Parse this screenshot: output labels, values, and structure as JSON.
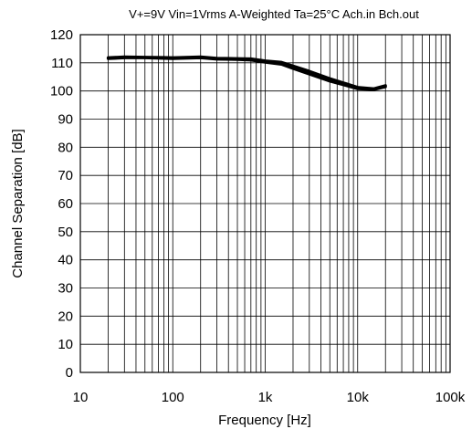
{
  "chart_data": {
    "type": "line",
    "title": "V+=9V Vin=1Vrms A-Weighted Ta=25°C Ach.in Bch.out",
    "xlabel": "Frequency [Hz]",
    "ylabel": "Channel Separation [dB]",
    "xscale": "log",
    "xlim": [
      10,
      100000
    ],
    "ylim": [
      0,
      120
    ],
    "x_ticks": [
      10,
      100,
      1000,
      10000,
      100000
    ],
    "x_tick_labels": [
      "10",
      "100",
      "1k",
      "10k",
      "100k"
    ],
    "y_ticks": [
      0,
      10,
      20,
      30,
      40,
      50,
      60,
      70,
      80,
      90,
      100,
      110,
      120
    ],
    "y_tick_labels": [
      "0",
      "10",
      "20",
      "30",
      "40",
      "50",
      "60",
      "70",
      "80",
      "90",
      "100",
      "110",
      "120"
    ],
    "grid": true,
    "legend": false,
    "series": [
      {
        "x": [
          20,
          30,
          50,
          80,
          100,
          150,
          200,
          300,
          500,
          700,
          1000,
          1500,
          2000,
          3000,
          5000,
          7000,
          10000,
          15000,
          20000
        ],
        "y": [
          111.5,
          111.8,
          111.8,
          111.6,
          111.5,
          111.7,
          111.8,
          111.3,
          111.2,
          111.0,
          110.2,
          109.5,
          108.0,
          106.0,
          103.5,
          102.2,
          100.8,
          100.5,
          101.5
        ]
      },
      {
        "x": [
          20,
          30,
          50,
          80,
          100,
          150,
          200,
          300,
          500,
          700,
          1000,
          1500,
          2000,
          3000,
          5000,
          7000,
          10000,
          15000,
          20000
        ],
        "y": [
          111.8,
          112.1,
          112.0,
          111.9,
          111.8,
          112.0,
          112.1,
          111.6,
          111.5,
          111.4,
          110.7,
          110.2,
          108.9,
          107.0,
          104.4,
          102.9,
          101.3,
          100.8,
          101.9
        ]
      }
    ]
  }
}
